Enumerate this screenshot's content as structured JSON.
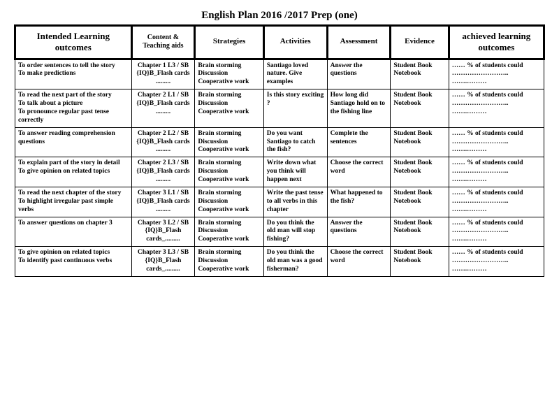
{
  "title": "English Plan 2016 /2017 Prep (one)",
  "headers": {
    "ilo": "Intended Learning outcomes",
    "content": "Content & Teaching aids",
    "strategies": "Strategies",
    "activities": "Activities",
    "assessment": "Assessment",
    "evidence": "Evidence",
    "achieved": "achieved learning outcomes"
  },
  "rows": [
    {
      "ilo": "To order sentences to tell the story\nTo make predictions",
      "content": "Chapter 1 L3 / SB\n{IQ}B_Flash cards .........",
      "strategies": "Brain    storming\nDiscussion\nCooperative  work",
      "activities": "Santiago loved nature. Give examples",
      "assessment": "Answer the questions",
      "evidence": "Student Book\nNotebook",
      "achieved": "…… % of students could …………………….. …….………"
    },
    {
      "ilo": "To read the next part of the story\nTo talk about a picture\nTo pronounce regular past tense correctly",
      "content": "Chapter 2 L1 / SB\n{IQ}B_Flash cards .........",
      "strategies": "Brain    storming\nDiscussion\nCooperative  work",
      "activities": "Is this story exciting ?",
      "assessment": "How long did Santiago hold on to the fishing line",
      "evidence": "Student Book\nNotebook",
      "achieved": "…… % of students could …………………….. …….………"
    },
    {
      "ilo": "To answer reading comprehension questions",
      "content": "Chapter 2 L2 / SB\n{IQ}B_Flash cards .........",
      "strategies": "Brain    storming\nDiscussion\nCooperative  work",
      "activities": "Do you want Santiago to catch the fish?",
      "assessment": "Complete the sentences",
      "evidence": "Student Book\nNotebook",
      "achieved": "…… % of students could …………………….. …….………"
    },
    {
      "ilo": "To explain part of the story in detail\nTo give opinion on related topics",
      "content": "Chapter 2 L3 / SB\n{IQ}B_Flash cards .........",
      "strategies": "Brain    storming\nDiscussion\nCooperative  work",
      "activities": "Write down what you think will happen next",
      "assessment": "Choose the correct word",
      "evidence": "Student Book\nNotebook",
      "achieved": "…… % of students could …………………….. …….………"
    },
    {
      "ilo": "To read the next chapter of the story\nTo highlight irregular past simple verbs",
      "content": "Chapter 3 L1 / SB\n{IQ}B_Flash cards .........",
      "strategies": "Brain    storming\nDiscussion\nCooperative  work",
      "activities": "Write the past tense to all verbs in this chapter",
      "assessment": "What happened to the fish?",
      "evidence": "Student Book\nNotebook",
      "achieved": "…… % of students could …………………….. …….………"
    },
    {
      "ilo": "To answer questions on  chapter 3",
      "content": "Chapter 3 L2 / SB\n{IQ}B_Flash cards_.........",
      "strategies": "Brain    storming\nDiscussion\nCooperative  work",
      "activities": "Do you think the old man will stop fishing?",
      "assessment": "Answer the questions",
      "evidence": "Student Book\nNotebook",
      "achieved": "…… % of students could …………………….. …….………"
    },
    {
      "ilo": "To give opinion on related topics\nTo identify past continuous verbs",
      "content": "Chapter 3 L3 / SB\n{IQ}B_Flash cards_.........",
      "strategies": "Brain    storming\nDiscussion\nCooperative  work",
      "activities": "Do you think the old man was a good fisherman?",
      "assessment": "Choose the correct word",
      "evidence": "Student Book\nNotebook",
      "achieved": "…… % of students could …………………….. …….………"
    }
  ]
}
